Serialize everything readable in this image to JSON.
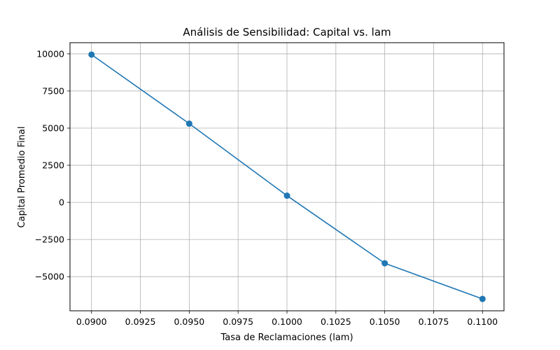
{
  "chart_data": {
    "type": "line",
    "title": "Análisis de Sensibilidad: Capital vs. lam",
    "xlabel": "Tasa de Reclamaciones (lam)",
    "ylabel": "Capital Promedio Final",
    "x": [
      0.09,
      0.095,
      0.1,
      0.105,
      0.11
    ],
    "series": [
      {
        "values": [
          9950,
          5300,
          450,
          -4100,
          -6500
        ],
        "color": "#1f77b4",
        "marker": "circle"
      }
    ],
    "xlim": [
      0.0889,
      0.1111
    ],
    "ylim": [
      -7300,
      10750
    ],
    "xticks": [
      0.09,
      0.0925,
      0.095,
      0.0975,
      0.1,
      0.1025,
      0.105,
      0.1075,
      0.11
    ],
    "xtick_labels": [
      "0.0900",
      "0.0925",
      "0.0950",
      "0.0975",
      "0.1000",
      "0.1025",
      "0.1050",
      "0.1075",
      "0.1100"
    ],
    "yticks": [
      -5000,
      -2500,
      0,
      2500,
      5000,
      7500,
      10000
    ],
    "ytick_labels": [
      "−5000",
      "−2500",
      "0",
      "2500",
      "5000",
      "7500",
      "10000"
    ],
    "grid": true,
    "legend": "none"
  }
}
